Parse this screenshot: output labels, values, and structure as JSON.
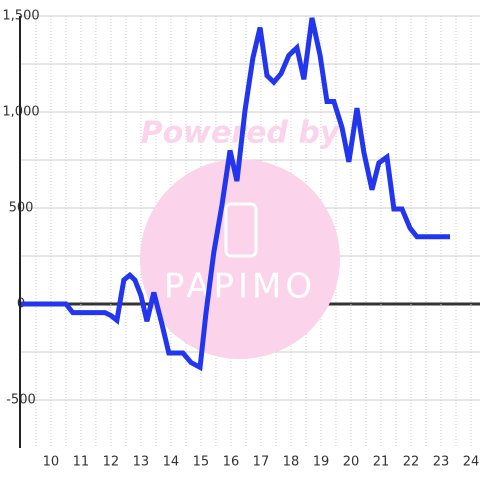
{
  "chart_data": {
    "type": "line",
    "watermark_text": "Powered by",
    "watermark_logo": "PAPIMO",
    "x": [
      9.0,
      10.5,
      10.73,
      11.8,
      12.0,
      12.2,
      12.43,
      12.63,
      12.8,
      13.0,
      13.2,
      13.43,
      13.7,
      13.93,
      14.4,
      14.67,
      14.97,
      15.17,
      15.43,
      15.7,
      15.97,
      16.2,
      16.47,
      16.73,
      16.97,
      17.2,
      17.43,
      17.67,
      17.93,
      18.2,
      18.43,
      18.7,
      18.97,
      19.2,
      19.43,
      19.7,
      19.93,
      20.2,
      20.43,
      20.7,
      20.93,
      21.2,
      21.43,
      21.7,
      21.97,
      22.2,
      23.3
    ],
    "series": [
      {
        "color": "#2236f0",
        "values": [
          0,
          0,
          -45,
          -45,
          -60,
          -85,
          125,
          150,
          125,
          45,
          -90,
          60,
          -105,
          -255,
          -255,
          -305,
          -330,
          -45,
          270,
          515,
          800,
          640,
          1010,
          1280,
          1440,
          1190,
          1155,
          1200,
          1295,
          1335,
          1170,
          1490,
          1295,
          1055,
          1055,
          920,
          740,
          1020,
          790,
          595,
          735,
          765,
          495,
          495,
          395,
          350,
          350
        ]
      }
    ],
    "xlim": [
      8.97,
      24.3
    ],
    "xticks": [
      10,
      11,
      12,
      13,
      14,
      15,
      16,
      17,
      18,
      19,
      20,
      21,
      22,
      23,
      24
    ],
    "ylim": [
      -750,
      1500
    ],
    "yticks": [
      {
        "value": 1500,
        "label": "1,500"
      },
      {
        "value": 1000,
        "label": "1,000"
      },
      500,
      0,
      -500
    ],
    "grid": true,
    "minor_grid": true
  }
}
